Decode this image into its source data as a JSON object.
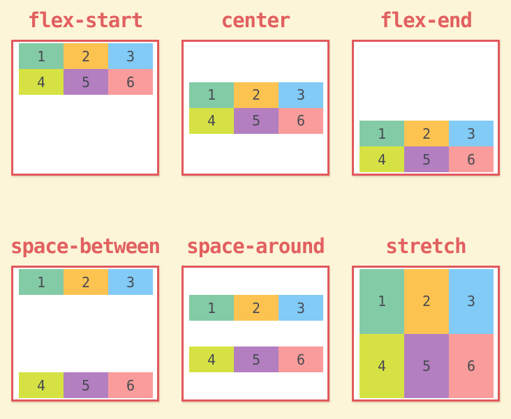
{
  "diagram": {
    "description_colors": {
      "page_background": "#fdf5d8",
      "panel_background": "#ffffff",
      "panel_border": "#e1585c",
      "title_text": "#e26060",
      "item_number_text": "#484a52"
    },
    "panels": [
      {
        "title": "flex-start",
        "align": "flex-start"
      },
      {
        "title": "center",
        "align": "center"
      },
      {
        "title": "flex-end",
        "align": "flex-end"
      },
      {
        "title": "space-between",
        "align": "space-between"
      },
      {
        "title": "space-around",
        "align": "space-around"
      },
      {
        "title": "stretch",
        "align": "stretch"
      }
    ],
    "items": [
      {
        "label": "1",
        "color": "#83cba6"
      },
      {
        "label": "2",
        "color": "#fcc351"
      },
      {
        "label": "3",
        "color": "#81cbf6"
      },
      {
        "label": "4",
        "color": "#d6e244"
      },
      {
        "label": "5",
        "color": "#b37fc1"
      },
      {
        "label": "6",
        "color": "#f99c9b"
      }
    ]
  }
}
